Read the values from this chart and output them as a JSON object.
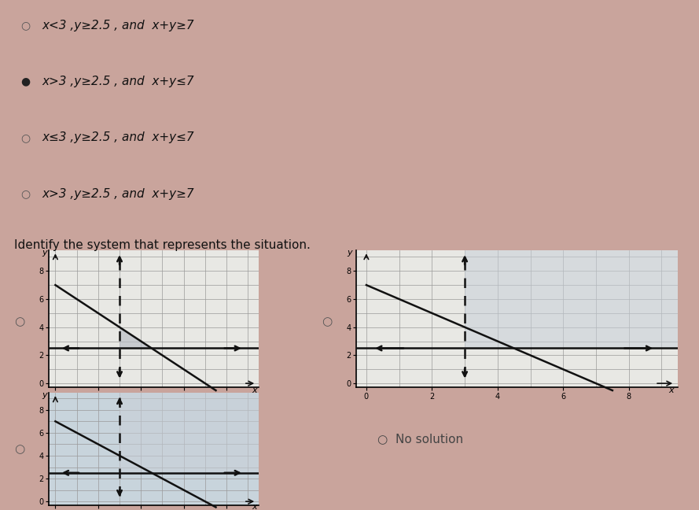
{
  "bg_color": "#c9a49c",
  "options": [
    {
      "text": "x<3 ,y≥2.5 , and  x+y≥7",
      "selected": false
    },
    {
      "text": "x>3 ,y≥2.5 , and  x+y≤7",
      "selected": true
    },
    {
      "text": "x≤3 ,y≥2.5 , and  x+y≤7",
      "selected": false
    },
    {
      "text": "x>3 ,y≥2.5 , and  x+y≥7",
      "selected": false
    }
  ],
  "identify_text": "Identify the system that represents the situation.",
  "graph_bg": "#e8e8e4",
  "graph_bg2": "#c8d4dc",
  "shade1_color": "#b8bcc4",
  "shade2_color": "#c8d0d8",
  "shade3_color": "#c8d0d8",
  "line_color": "#111111",
  "no_solution_text": "No solution"
}
